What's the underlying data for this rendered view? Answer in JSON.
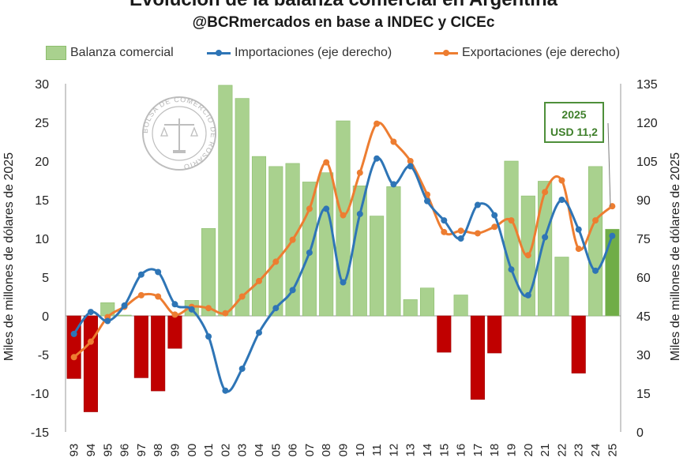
{
  "header": {
    "title": "Evolución de la balanza comercial en Argentina",
    "subtitle": "@BCRmercados en base a INDEC y CICEc"
  },
  "legend": {
    "balanza": "Balanza comercial",
    "importaciones": "Importaciones (eje derecho)",
    "exportaciones": "Exportaciones (eje derecho)"
  },
  "axes": {
    "left_label": "Miles de millones de dólares de 2025",
    "right_label": "Miles de millones de dólares de 2025"
  },
  "callout": {
    "year": "2025",
    "value": "USD 11,2"
  },
  "seal": {
    "text": "BOLSA DE COMERCIO DE ROSARIO"
  },
  "colors": {
    "positive_bar": "#a9d18e",
    "highlight_bar": "#70ad47",
    "negative_bar": "#c00000",
    "imports": "#2e75b6",
    "exports": "#ed7d31"
  },
  "chart_data": {
    "type": "bar",
    "title": "Evolución de la balanza comercial en Argentina",
    "xlabel": "",
    "ylabel": "Miles de millones de dólares de 2025",
    "y2label": "Miles de millones de dólares de 2025",
    "ylim": [
      -15,
      30
    ],
    "y2lim": [
      0,
      135
    ],
    "yticks": [
      -15,
      -10,
      -5,
      0,
      5,
      10,
      15,
      20,
      25,
      30
    ],
    "y2ticks": [
      0,
      15,
      30,
      45,
      60,
      75,
      90,
      105,
      120,
      135
    ],
    "categories": [
      "93",
      "94",
      "95",
      "96",
      "97",
      "98",
      "99",
      "00",
      "01",
      "02",
      "03",
      "04",
      "05",
      "06",
      "07",
      "08",
      "09",
      "10",
      "11",
      "12",
      "13",
      "14",
      "15",
      "16",
      "17",
      "18",
      "19",
      "20",
      "21",
      "22",
      "23",
      "24",
      "25"
    ],
    "series": [
      {
        "name": "Balanza comercial",
        "axis": "left",
        "kind": "bar",
        "values": [
          -8.1,
          -12.4,
          1.7,
          0.1,
          -8.0,
          -9.7,
          -4.2,
          2.0,
          11.3,
          29.8,
          28.1,
          20.6,
          19.3,
          19.7,
          17.3,
          18.5,
          25.2,
          16.8,
          12.9,
          16.7,
          2.1,
          3.6,
          -4.7,
          2.7,
          -10.8,
          -4.8,
          20.0,
          15.5,
          17.4,
          7.6,
          -7.4,
          19.3,
          11.2
        ]
      },
      {
        "name": "Importaciones (eje derecho)",
        "axis": "right",
        "kind": "line",
        "values": [
          38.0,
          46.5,
          43.0,
          49.0,
          61.0,
          62.0,
          49.5,
          47.5,
          37.0,
          16.0,
          24.5,
          38.5,
          48.0,
          55.0,
          69.5,
          86.5,
          58.0,
          84.5,
          106.0,
          96.0,
          103.0,
          89.5,
          82.0,
          75.0,
          88.0,
          84.0,
          63.0,
          53.0,
          75.5,
          90.0,
          78.5,
          62.5,
          76.0
        ]
      },
      {
        "name": "Exportaciones (eje derecho)",
        "axis": "right",
        "kind": "line",
        "values": [
          29.0,
          35.0,
          44.5,
          48.5,
          53.0,
          52.5,
          45.5,
          48.5,
          48.0,
          46.0,
          52.5,
          58.5,
          66.0,
          74.5,
          86.5,
          104.5,
          84.0,
          100.5,
          119.5,
          112.5,
          105.0,
          92.0,
          77.5,
          78.0,
          77.0,
          79.5,
          82.0,
          68.5,
          93.0,
          97.5,
          71.0,
          82.0,
          87.5
        ]
      }
    ]
  }
}
